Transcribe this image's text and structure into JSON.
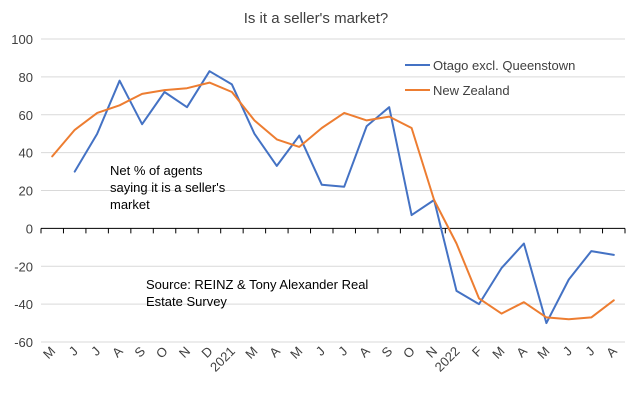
{
  "chart_data": {
    "type": "line",
    "title": "Is it a seller's market?",
    "categories": [
      "M",
      "J",
      "J",
      "A",
      "S",
      "O",
      "N",
      "D",
      "2021",
      "M",
      "A",
      "M",
      "J",
      "J",
      "A",
      "S",
      "O",
      "N",
      "2022",
      "F",
      "M",
      "A",
      "M",
      "J",
      "J",
      "A"
    ],
    "series": [
      {
        "name": "Otago excl. Queenstown",
        "color": "#4472c4",
        "values": [
          null,
          30,
          50,
          78,
          55,
          72,
          64,
          83,
          76,
          50,
          33,
          49,
          23,
          22,
          54,
          64,
          7,
          15,
          -33,
          -40,
          -21,
          -8,
          -50,
          -27,
          -12,
          -14
        ]
      },
      {
        "name": "New Zealand",
        "color": "#ed7d31",
        "values": [
          38,
          52,
          61,
          65,
          71,
          73,
          74,
          77,
          72,
          57,
          47,
          43,
          53,
          61,
          57,
          59,
          53,
          15,
          -8,
          -37,
          -45,
          -39,
          -47,
          -48,
          -47,
          -38
        ]
      }
    ],
    "yticks": [
      100,
      80,
      60,
      40,
      20,
      0,
      -20,
      -40,
      -60
    ],
    "ylim": [
      -60,
      100
    ],
    "grid": true,
    "legend_position": "top-right",
    "annotations": [
      {
        "id": "note",
        "lines": [
          "Net % of agents",
          "saying it is a seller's",
          "market"
        ]
      },
      {
        "id": "source",
        "lines": [
          "Source: REINZ & Tony Alexander Real",
          "Estate Survey"
        ]
      }
    ]
  }
}
